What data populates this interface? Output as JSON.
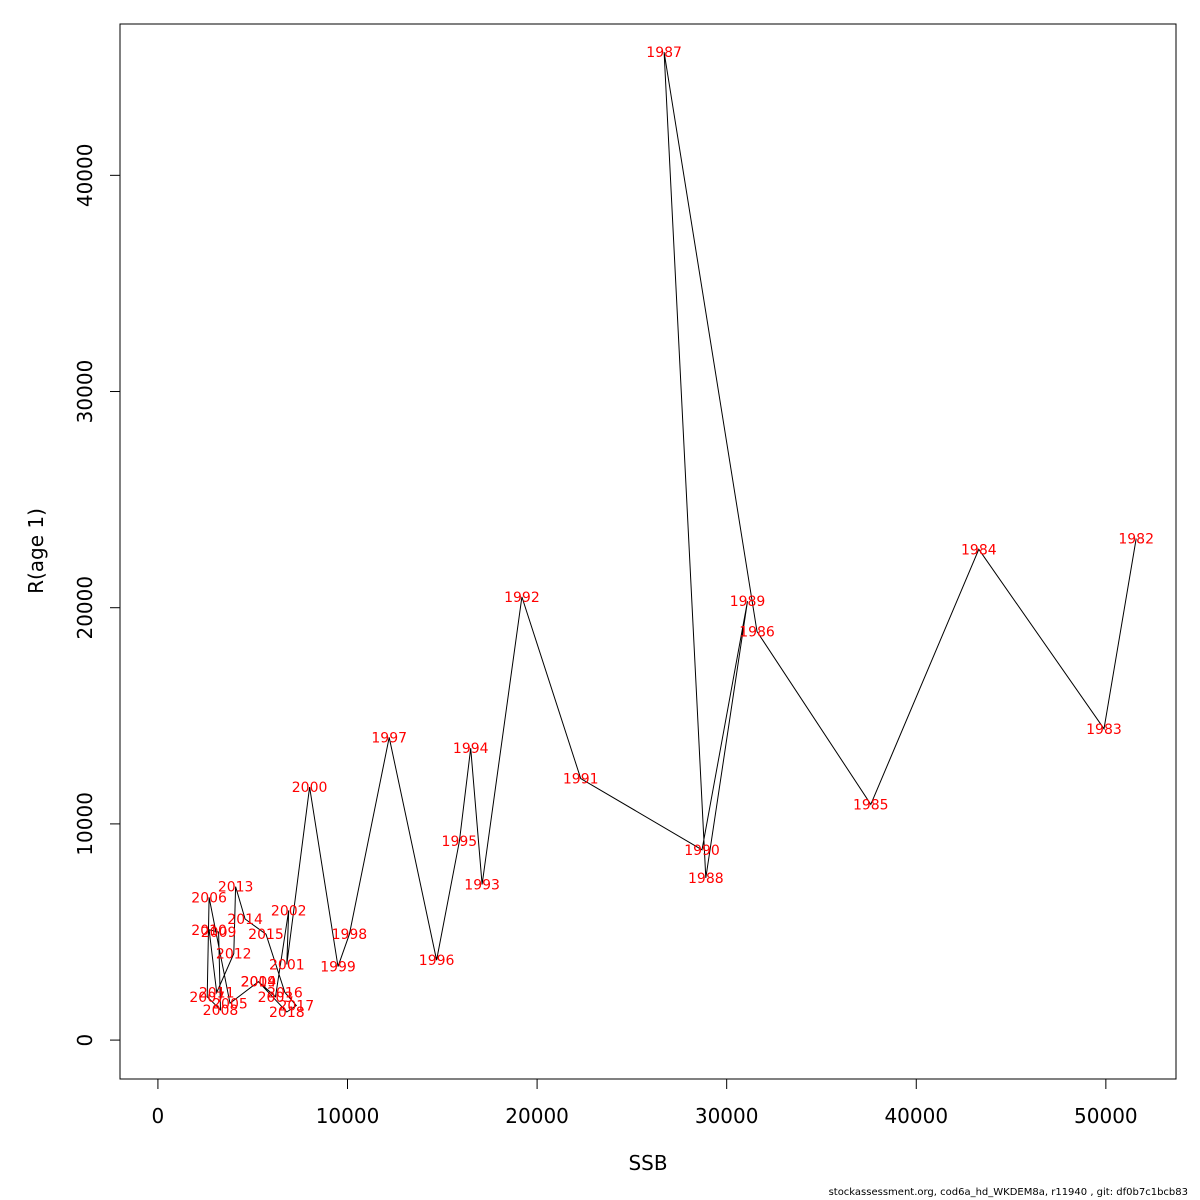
{
  "chart_data": {
    "type": "scatter",
    "title": "",
    "xlabel": "SSB",
    "ylabel": "R(age 1)",
    "xlim": [
      -2000,
      53700
    ],
    "ylim": [
      -1800,
      47000
    ],
    "x_ticks": [
      0,
      10000,
      20000,
      30000,
      40000,
      50000
    ],
    "y_ticks": [
      0,
      10000,
      20000,
      30000,
      40000
    ],
    "x_tick_labels": [
      "0",
      "10000",
      "20000",
      "30000",
      "40000",
      "50000"
    ],
    "y_tick_labels": [
      "0",
      "10000",
      "20000",
      "30000",
      "40000"
    ],
    "grid": false,
    "line_color": "#000000",
    "label_color": "#ff0000",
    "points": [
      {
        "label": "1982",
        "x": 51600,
        "y": 23200
      },
      {
        "label": "1983",
        "x": 49900,
        "y": 14400
      },
      {
        "label": "1984",
        "x": 43300,
        "y": 22700
      },
      {
        "label": "1985",
        "x": 37600,
        "y": 10900
      },
      {
        "label": "1986",
        "x": 31600,
        "y": 18900
      },
      {
        "label": "1987",
        "x": 26700,
        "y": 45700
      },
      {
        "label": "1988",
        "x": 28900,
        "y": 7500
      },
      {
        "label": "1989",
        "x": 31100,
        "y": 20300
      },
      {
        "label": "1990",
        "x": 28700,
        "y": 8800
      },
      {
        "label": "1991",
        "x": 22300,
        "y": 12100
      },
      {
        "label": "1992",
        "x": 19200,
        "y": 20500
      },
      {
        "label": "1993",
        "x": 17100,
        "y": 7200
      },
      {
        "label": "1994",
        "x": 16500,
        "y": 13500
      },
      {
        "label": "1995",
        "x": 15900,
        "y": 9200
      },
      {
        "label": "1996",
        "x": 14700,
        "y": 3700
      },
      {
        "label": "1997",
        "x": 12200,
        "y": 14000
      },
      {
        "label": "1998",
        "x": 10100,
        "y": 4900
      },
      {
        "label": "1999",
        "x": 9500,
        "y": 3400
      },
      {
        "label": "2000",
        "x": 8000,
        "y": 11700
      },
      {
        "label": "2001",
        "x": 6800,
        "y": 3500
      },
      {
        "label": "2002",
        "x": 6900,
        "y": 6000
      },
      {
        "label": "2003",
        "x": 6200,
        "y": 2000
      },
      {
        "label": "2004",
        "x": 5300,
        "y": 2700
      },
      {
        "label": "2005",
        "x": 3800,
        "y": 1700
      },
      {
        "label": "2006",
        "x": 2700,
        "y": 6600
      },
      {
        "label": "2007",
        "x": 2600,
        "y": 2000
      },
      {
        "label": "2008",
        "x": 3300,
        "y": 1400
      },
      {
        "label": "2009",
        "x": 3200,
        "y": 5000
      },
      {
        "label": "2010",
        "x": 2700,
        "y": 5100
      },
      {
        "label": "2011",
        "x": 3100,
        "y": 2200
      },
      {
        "label": "2012",
        "x": 4000,
        "y": 4000
      },
      {
        "label": "2013",
        "x": 4100,
        "y": 7100
      },
      {
        "label": "2014",
        "x": 4600,
        "y": 5600
      },
      {
        "label": "2015",
        "x": 5700,
        "y": 4900
      },
      {
        "label": "2016",
        "x": 6700,
        "y": 2200
      },
      {
        "label": "2017",
        "x": 7300,
        "y": 1600
      },
      {
        "label": "2018",
        "x": 6800,
        "y": 1300
      },
      {
        "label": "2019",
        "x": 5300,
        "y": 2700
      }
    ]
  },
  "footer": "stockassessment.org, cod6a_hd_WKDEM8a, r11940 , git: df0b7c1bcb83"
}
